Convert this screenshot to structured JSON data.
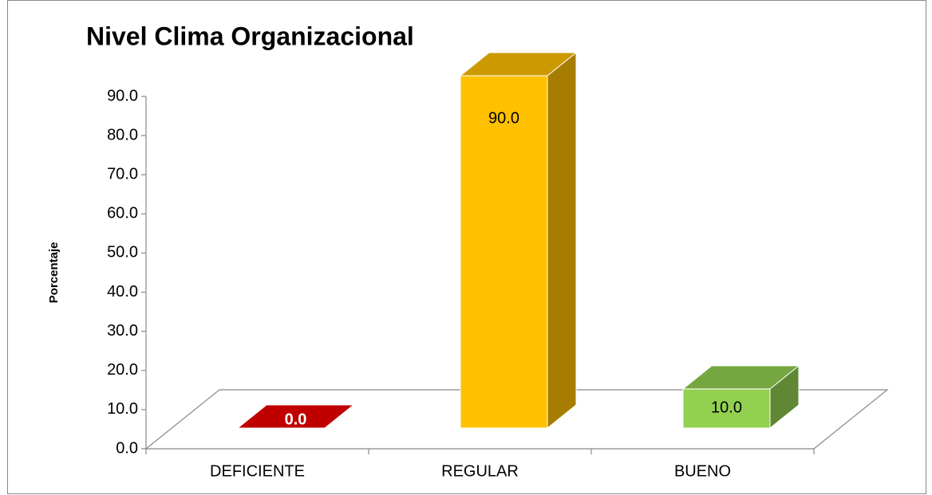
{
  "chart_data": {
    "type": "bar3d",
    "title": "Nivel Clima Organizacional",
    "ylabel": "Porcentaje",
    "categories": [
      "DEFICIENTE",
      "REGULAR",
      "BUENO"
    ],
    "values": [
      0,
      90,
      10
    ],
    "value_labels": [
      "0.0",
      "90.0",
      "10.0"
    ],
    "colors": [
      "#c00000",
      "#ffc000",
      "#92d050"
    ],
    "ylim": [
      0,
      90
    ],
    "yticks": [
      {
        "value": 0,
        "label": "0.0"
      },
      {
        "value": 10,
        "label": "10.0"
      },
      {
        "value": 20,
        "label": "20.0"
      },
      {
        "value": 30,
        "label": "30.0"
      },
      {
        "value": 40,
        "label": "40.0"
      },
      {
        "value": 50,
        "label": "50.0"
      },
      {
        "value": 60,
        "label": "60.0"
      },
      {
        "value": 70,
        "label": "70.0"
      },
      {
        "value": 80,
        "label": "80.0"
      },
      {
        "value": 90,
        "label": "90.0"
      }
    ]
  }
}
